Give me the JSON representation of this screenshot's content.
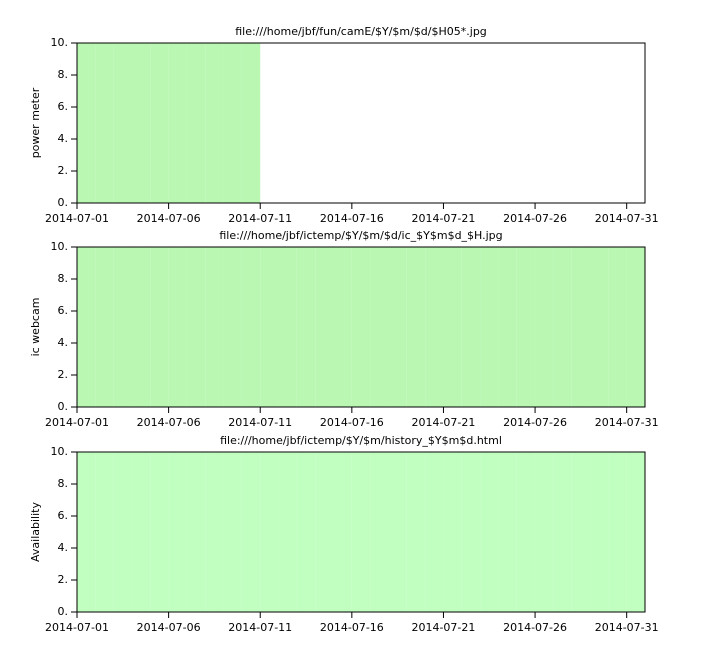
{
  "chart_data": [
    {
      "type": "bar",
      "title": "file:///home/jbf/fun/camE/$Y/$m/$d/$H05*.jpg",
      "y_label": "power meter",
      "color": "#b9f7b2",
      "x": [
        "2014-07-01",
        "2014-07-02",
        "2014-07-03",
        "2014-07-04",
        "2014-07-05",
        "2014-07-06",
        "2014-07-07",
        "2014-07-08",
        "2014-07-09",
        "2014-07-10",
        "2014-07-11",
        "2014-07-12",
        "2014-07-13",
        "2014-07-14",
        "2014-07-15",
        "2014-07-16",
        "2014-07-17",
        "2014-07-18",
        "2014-07-19",
        "2014-07-20",
        "2014-07-21",
        "2014-07-22",
        "2014-07-23",
        "2014-07-24",
        "2014-07-25",
        "2014-07-26",
        "2014-07-27",
        "2014-07-28",
        "2014-07-29",
        "2014-07-30",
        "2014-07-31"
      ],
      "values": [
        10,
        10,
        10,
        10,
        10,
        10,
        10,
        10,
        10,
        10,
        0,
        0,
        0,
        0,
        0,
        0,
        0,
        0,
        0,
        0,
        0,
        0,
        0,
        0,
        0,
        0,
        0,
        0,
        0,
        0,
        0
      ],
      "xlim": [
        "2014-07-01",
        "2014-08-01"
      ],
      "xticks": [
        "2014-07-01",
        "2014-07-06",
        "2014-07-11",
        "2014-07-16",
        "2014-07-21",
        "2014-07-26",
        "2014-07-31"
      ],
      "ylim": [
        0,
        10
      ],
      "yticks": [
        {
          "value": 0,
          "label": "0."
        },
        {
          "value": 2,
          "label": "2."
        },
        {
          "value": 4,
          "label": "4."
        },
        {
          "value": 6,
          "label": "6."
        },
        {
          "value": 8,
          "label": "8."
        },
        {
          "value": 10,
          "label": "10."
        }
      ]
    },
    {
      "type": "bar",
      "title": "file:///home/jbf/ictemp/$Y/$m/$d/ic_$Y$m$d_$H.jpg",
      "y_label": "ic webcam",
      "color": "#b9f7b2",
      "x": [
        "2014-07-01",
        "2014-07-02",
        "2014-07-03",
        "2014-07-04",
        "2014-07-05",
        "2014-07-06",
        "2014-07-07",
        "2014-07-08",
        "2014-07-09",
        "2014-07-10",
        "2014-07-11",
        "2014-07-12",
        "2014-07-13",
        "2014-07-14",
        "2014-07-15",
        "2014-07-16",
        "2014-07-17",
        "2014-07-18",
        "2014-07-19",
        "2014-07-20",
        "2014-07-21",
        "2014-07-22",
        "2014-07-23",
        "2014-07-24",
        "2014-07-25",
        "2014-07-26",
        "2014-07-27",
        "2014-07-28",
        "2014-07-29",
        "2014-07-30",
        "2014-07-31"
      ],
      "values": [
        10,
        10,
        10,
        10,
        10,
        10,
        10,
        10,
        10,
        10,
        10,
        10,
        10,
        10,
        10,
        10,
        10,
        10,
        10,
        10,
        10,
        10,
        10,
        10,
        10,
        10,
        10,
        10,
        10,
        10,
        10
      ],
      "xlim": [
        "2014-07-01",
        "2014-08-01"
      ],
      "xticks": [
        "2014-07-01",
        "2014-07-06",
        "2014-07-11",
        "2014-07-16",
        "2014-07-21",
        "2014-07-26",
        "2014-07-31"
      ],
      "ylim": [
        0,
        10
      ],
      "yticks": [
        {
          "value": 0,
          "label": "0."
        },
        {
          "value": 2,
          "label": "2."
        },
        {
          "value": 4,
          "label": "4."
        },
        {
          "value": 6,
          "label": "6."
        },
        {
          "value": 8,
          "label": "8."
        },
        {
          "value": 10,
          "label": "10."
        }
      ]
    },
    {
      "type": "bar",
      "title": "file:///home/jbf/ictemp/$Y/$m/history_$Y$m$d.html",
      "y_label": "Availability",
      "color": "#c0ffc0",
      "x": [
        "2014-07-01",
        "2014-07-02",
        "2014-07-03",
        "2014-07-04",
        "2014-07-05",
        "2014-07-06",
        "2014-07-07",
        "2014-07-08",
        "2014-07-09",
        "2014-07-10",
        "2014-07-11",
        "2014-07-12",
        "2014-07-13",
        "2014-07-14",
        "2014-07-15",
        "2014-07-16",
        "2014-07-17",
        "2014-07-18",
        "2014-07-19",
        "2014-07-20",
        "2014-07-21",
        "2014-07-22",
        "2014-07-23",
        "2014-07-24",
        "2014-07-25",
        "2014-07-26",
        "2014-07-27",
        "2014-07-28",
        "2014-07-29",
        "2014-07-30",
        "2014-07-31"
      ],
      "values": [
        10,
        10,
        10,
        10,
        10,
        10,
        10,
        10,
        10,
        10,
        10,
        10,
        10,
        10,
        10,
        10,
        10,
        10,
        10,
        10,
        10,
        10,
        10,
        10,
        10,
        10,
        10,
        10,
        10,
        10,
        10
      ],
      "xlim": [
        "2014-07-01",
        "2014-08-01"
      ],
      "xticks": [
        "2014-07-01",
        "2014-07-06",
        "2014-07-11",
        "2014-07-16",
        "2014-07-21",
        "2014-07-26",
        "2014-07-31"
      ],
      "ylim": [
        0,
        10
      ],
      "yticks": [
        {
          "value": 0,
          "label": "0."
        },
        {
          "value": 2,
          "label": "2."
        },
        {
          "value": 4,
          "label": "4."
        },
        {
          "value": 6,
          "label": "6."
        },
        {
          "value": 8,
          "label": "8."
        },
        {
          "value": 10,
          "label": "10."
        }
      ]
    }
  ]
}
